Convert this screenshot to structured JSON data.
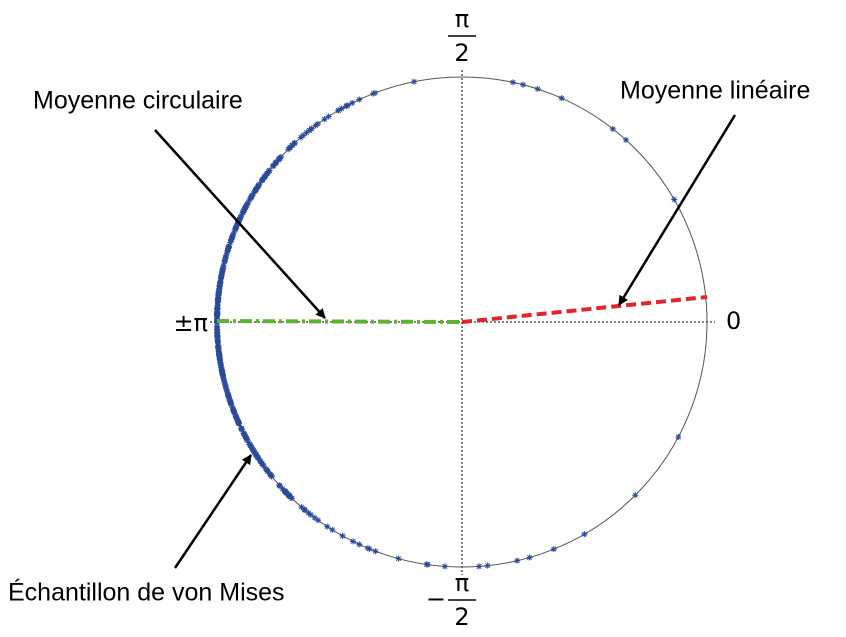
{
  "axis_labels": {
    "top": {
      "numerator": "π",
      "denominator": "2"
    },
    "bottom": {
      "sign": "−",
      "numerator": "π",
      "denominator": "2"
    },
    "left": "±π",
    "right": "0"
  },
  "annotations": {
    "circular_mean": "Moyenne circulaire",
    "linear_mean": "Moyenne linéaire",
    "sample": "Échantillon de von Mises"
  }
}
